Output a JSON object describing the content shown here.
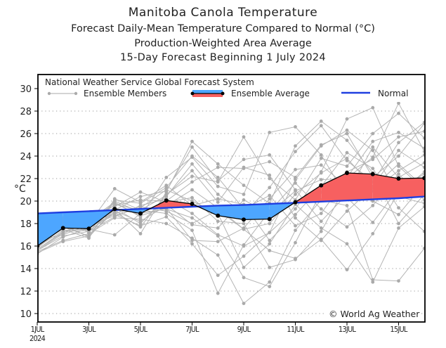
{
  "chart_data": {
    "type": "line",
    "title": "Manitoba Canola Temperature",
    "subtitles": [
      "Forecast Daily-Mean Temperature Compared to Normal (°C)",
      "Production-Weighted Area Average",
      "15-Day Forecast Beginning 1 July 2024"
    ],
    "ylabel": "°C",
    "xlabel": "",
    "ylim": [
      9.2,
      31
    ],
    "yticks": [
      10,
      12,
      14,
      16,
      18,
      20,
      22,
      24,
      26,
      28,
      30
    ],
    "xlim": [
      1,
      16
    ],
    "xticks": [
      {
        "day": 1,
        "label": "1JUL",
        "sublabel": "2024"
      },
      {
        "day": 3,
        "label": "3JUL"
      },
      {
        "day": 5,
        "label": "5JUL"
      },
      {
        "day": 7,
        "label": "7JUL"
      },
      {
        "day": 9,
        "label": "9JUL"
      },
      {
        "day": 11,
        "label": "11JUL"
      },
      {
        "day": 13,
        "label": "13JUL"
      },
      {
        "day": 15,
        "label": "15JUL"
      }
    ],
    "grid": "horizontal-dotted",
    "legend": {
      "header": "National Weather Service Global Forecast System",
      "position": "top",
      "entries": [
        "Ensemble Members",
        "Ensemble Average",
        "Normal"
      ]
    },
    "annotation": "© World Ag Weather",
    "x": [
      1,
      2,
      3,
      4,
      5,
      6,
      7,
      8,
      9,
      10,
      11,
      12,
      13,
      14,
      15,
      16
    ],
    "series": [
      {
        "name": "Ensemble Average",
        "color": "#000000",
        "values": [
          16.0,
          17.6,
          17.55,
          19.3,
          18.9,
          20.05,
          19.75,
          18.7,
          18.35,
          18.4,
          19.9,
          21.4,
          22.5,
          22.4,
          22.0,
          22.05
        ]
      },
      {
        "name": "Normal",
        "color": "#1f3fe0",
        "values": [
          18.9,
          19.0,
          19.1,
          19.2,
          19.3,
          19.4,
          19.5,
          19.6,
          19.65,
          19.75,
          19.85,
          19.95,
          20.05,
          20.15,
          20.25,
          20.4
        ]
      }
    ],
    "fill_colors": {
      "above_normal": "#f76060",
      "below_normal": "#4da6ff"
    },
    "members": [
      [
        15.4,
        16.4,
        16.9,
        19.1,
        18.2,
        19.6,
        21.0,
        19.4,
        17.5,
        18.0,
        20.6,
        22.5,
        23.8,
        21.3,
        24.5,
        23.0
      ],
      [
        16.5,
        18.3,
        17.2,
        20.1,
        19.8,
        21.2,
        24.0,
        22.1,
        19.3,
        20.5,
        17.8,
        18.9,
        22.1,
        25.3,
        26.1,
        24.7
      ],
      [
        15.7,
        17.2,
        18.3,
        18.8,
        17.8,
        18.6,
        16.2,
        13.4,
        15.1,
        17.2,
        21.9,
        24.9,
        26.3,
        24.5,
        20.4,
        19.8
      ],
      [
        16.1,
        17.8,
        17.8,
        19.7,
        19.2,
        20.5,
        22.7,
        19.9,
        23.0,
        22.3,
        18.5,
        16.5,
        19.1,
        21.2,
        23.3,
        21.2
      ],
      [
        15.9,
        17.4,
        17.5,
        17.0,
        18.9,
        19.3,
        18.5,
        16.9,
        13.2,
        12.4,
        16.3,
        20.8,
        22.6,
        23.7,
        25.7,
        26.2
      ],
      [
        16.3,
        17.9,
        16.8,
        19.3,
        17.1,
        20.8,
        25.3,
        23.3,
        21.4,
        19.8,
        24.9,
        27.1,
        25.4,
        22.5,
        18.0,
        20.6
      ],
      [
        15.8,
        17.7,
        17.7,
        19.5,
        20.8,
        19.9,
        20.3,
        18.2,
        18.0,
        14.1,
        14.8,
        17.3,
        21.5,
        20.9,
        22.7,
        24.1
      ],
      [
        16.6,
        18.1,
        18.3,
        19.9,
        18.6,
        22.1,
        23.9,
        21.3,
        20.6,
        26.1,
        26.6,
        24.1,
        20.3,
        18.1,
        21.1,
        22.4
      ],
      [
        15.6,
        16.9,
        17.3,
        18.6,
        19.6,
        20.2,
        18.9,
        17.0,
        16.0,
        17.2,
        19.3,
        22.6,
        27.3,
        28.3,
        23.1,
        21.0
      ],
      [
        16.2,
        17.5,
        16.7,
        20.2,
        19.2,
        18.9,
        17.4,
        11.8,
        16.1,
        19.1,
        21.6,
        19.3,
        17.7,
        19.6,
        22.4,
        20.1
      ],
      [
        15.3,
        16.8,
        17.6,
        19.0,
        17.7,
        20.6,
        22.2,
        21.7,
        25.7,
        22.0,
        20.1,
        23.8,
        23.1,
        26.0,
        27.8,
        25.6
      ],
      [
        16.4,
        17.6,
        18.0,
        21.1,
        19.9,
        21.4,
        19.6,
        20.2,
        19.7,
        16.5,
        18.8,
        21.3,
        24.3,
        22.9,
        19.4,
        17.3
      ],
      [
        15.5,
        16.5,
        17.1,
        18.5,
        18.4,
        18.0,
        16.7,
        15.2,
        10.9,
        12.8,
        17.4,
        20.1,
        19.6,
        13.0,
        12.9,
        15.8
      ],
      [
        16.0,
        17.9,
        18.5,
        19.6,
        20.1,
        20.0,
        21.7,
        23.0,
        22.9,
        23.5,
        22.1,
        25.0,
        26.0,
        22.1,
        24.0,
        26.9
      ],
      [
        15.7,
        17.3,
        17.4,
        18.9,
        19.5,
        19.1,
        18.0,
        19.2,
        17.5,
        15.6,
        14.9,
        16.6,
        13.9,
        17.1,
        20.7,
        22.6
      ],
      [
        16.5,
        17.0,
        17.9,
        19.4,
        18.0,
        20.4,
        23.3,
        20.6,
        18.9,
        21.2,
        24.4,
        26.7,
        23.6,
        21.7,
        25.2,
        27.0
      ],
      [
        15.9,
        17.7,
        16.9,
        20.0,
        19.0,
        19.7,
        17.9,
        17.6,
        20.1,
        18.9,
        20.9,
        21.9,
        22.0,
        23.9,
        28.7,
        24.4
      ],
      [
        16.1,
        18.2,
        17.8,
        18.7,
        19.4,
        21.0,
        20.0,
        18.9,
        14.1,
        16.2,
        19.7,
        17.6,
        16.2,
        12.8,
        17.6,
        19.5
      ],
      [
        15.6,
        17.1,
        18.2,
        19.8,
        18.7,
        19.4,
        16.5,
        16.4,
        17.6,
        20.2,
        22.8,
        23.2,
        21.3,
        20.0,
        18.8,
        21.6
      ],
      [
        16.3,
        18.5,
        17.3,
        19.2,
        20.4,
        20.9,
        24.8,
        21.8,
        23.7,
        24.1,
        21.0,
        18.2,
        20.6,
        24.8,
        22.1,
        23.4
      ]
    ]
  }
}
